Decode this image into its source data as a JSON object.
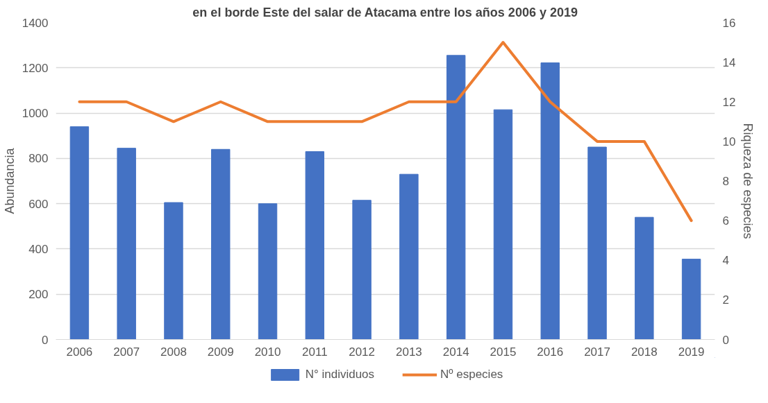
{
  "chart_data": {
    "type": "bar",
    "title": "en el borde Este del salar de Atacama entre los años 2006 y 2019",
    "categories": [
      "2006",
      "2007",
      "2008",
      "2009",
      "2010",
      "2011",
      "2012",
      "2013",
      "2014",
      "2015",
      "2016",
      "2017",
      "2018",
      "2019"
    ],
    "series": [
      {
        "name": "N° individuos",
        "color": "#4472c4",
        "values": [
          940,
          845,
          605,
          840,
          600,
          830,
          615,
          730,
          1255,
          1015,
          1222,
          850,
          540,
          355
        ]
      },
      {
        "name": "Nº especies",
        "type": "line",
        "axis": "y2",
        "color": "#ed7d31",
        "values": [
          12,
          12,
          11,
          12,
          11,
          11,
          11,
          12,
          12,
          15,
          12,
          10,
          10,
          6
        ]
      }
    ],
    "ylabel": "Abundancia",
    "y2label": "Riqueza de especies",
    "ylim": [
      0,
      1400
    ],
    "yticks": [
      0,
      200,
      400,
      600,
      800,
      1000,
      1200,
      1400
    ],
    "y2lim": [
      0,
      16
    ],
    "y2ticks": [
      0,
      2,
      4,
      6,
      8,
      10,
      12,
      14,
      16
    ],
    "grid": "y",
    "legend": "bottom",
    "line_style": "solid",
    "marker": "none"
  }
}
